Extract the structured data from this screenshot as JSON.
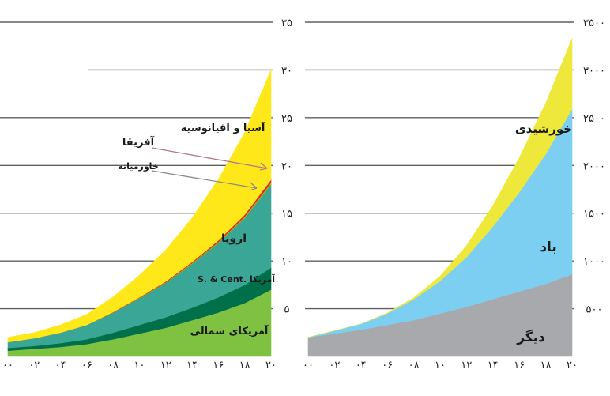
{
  "chart_data": [
    {
      "type": "area",
      "stacked": true,
      "x": [
        "۰۰",
        "۰۲",
        "۰۴",
        "۰۶",
        "۰۸",
        "۱۰",
        "۱۲",
        "۱۴",
        "۱۶",
        "۱۸",
        "۲۰"
      ],
      "x_values": [
        2000,
        2002,
        2004,
        2006,
        2008,
        2010,
        2012,
        2014,
        2016,
        2018,
        2020
      ],
      "yticks": [
        "۵",
        "۱۰",
        "۱۵",
        "۲۰",
        "۲۵",
        "۳۰",
        "۳۵"
      ],
      "ytick_values": [
        5,
        10,
        15,
        20,
        25,
        30,
        35
      ],
      "ylim": [
        0,
        35
      ],
      "grid": true,
      "series": [
        {
          "name": "آمریکای شمالی",
          "color": "#7fc241",
          "values": [
            0.6,
            0.8,
            1.0,
            1.3,
            1.8,
            2.4,
            3.0,
            3.8,
            4.6,
            5.6,
            7.0
          ]
        },
        {
          "name": "S. & Cent. آمریکا",
          "color": "#00704a",
          "values": [
            0.3,
            0.3,
            0.4,
            0.5,
            0.7,
            0.9,
            1.1,
            1.3,
            1.6,
            1.9,
            2.3
          ]
        },
        {
          "name": "اروپا",
          "color": "#3aa796",
          "values": [
            0.6,
            0.8,
            1.1,
            1.5,
            2.1,
            2.8,
            3.6,
            4.6,
            5.7,
            7.0,
            8.7
          ]
        },
        {
          "name": "خاورمیانه",
          "color": "#a8b400",
          "values": [
            0.0,
            0.0,
            0.0,
            0.0,
            0.0,
            0.05,
            0.05,
            0.1,
            0.1,
            0.15,
            0.2
          ]
        },
        {
          "name": "آفریقا",
          "color": "#e8202a",
          "values": [
            0.0,
            0.0,
            0.0,
            0.0,
            0.05,
            0.05,
            0.1,
            0.1,
            0.15,
            0.2,
            0.3
          ]
        },
        {
          "name": "آسیا و اقیانوسیه",
          "color": "#ffe81a",
          "values": [
            0.5,
            0.6,
            0.8,
            1.1,
            1.6,
            2.3,
            3.3,
            4.6,
            6.4,
            8.6,
            11.5
          ]
        }
      ]
    },
    {
      "type": "area",
      "stacked": true,
      "x": [
        "۰۰",
        "۰۲",
        "۰۴",
        "۰۶",
        "۰۸",
        "۱۰",
        "۱۲",
        "۱۴",
        "۱۶",
        "۱۸",
        "۲۰"
      ],
      "x_values": [
        2000,
        2002,
        2004,
        2006,
        2008,
        2010,
        2012,
        2014,
        2016,
        2018,
        2020
      ],
      "yticks": [
        "۵۰۰",
        "۱۰۰۰",
        "۱۵۰۰",
        "۲۰۰۰",
        "۲۵۰۰",
        "۳۰۰۰",
        "۳۵۰۰"
      ],
      "ytick_values": [
        500,
        1000,
        1500,
        2000,
        2500,
        3000,
        3500
      ],
      "ylim": [
        0,
        3500
      ],
      "grid": true,
      "series": [
        {
          "name": "دیگر",
          "color": "#a8a9ad",
          "values": [
            200,
            240,
            280,
            330,
            380,
            450,
            520,
            600,
            680,
            760,
            860
          ]
        },
        {
          "name": "باد",
          "color": "#7dcff2",
          "values": [
            0,
            30,
            60,
            120,
            220,
            340,
            520,
            760,
            1040,
            1360,
            1730
          ]
        },
        {
          "name": "خورشیدی",
          "color": "#eee83a",
          "values": [
            0,
            0,
            0,
            5,
            15,
            50,
            120,
            220,
            360,
            530,
            740
          ]
        }
      ]
    }
  ]
}
